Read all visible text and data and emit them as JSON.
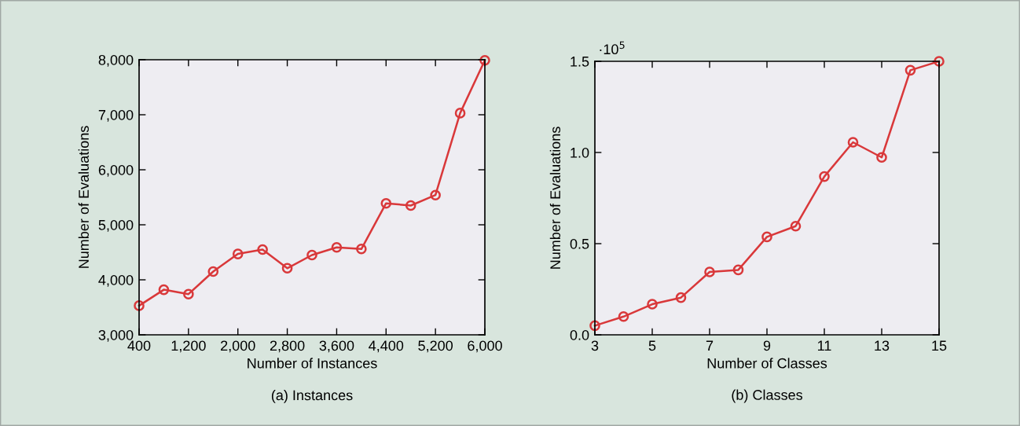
{
  "chart_data": [
    {
      "type": "line",
      "subtitle": "(a) Instances",
      "xlabel": "Number of Instances",
      "ylabel": "Number of Evaluations",
      "x": [
        400,
        800,
        1200,
        1600,
        2000,
        2400,
        2800,
        3200,
        3600,
        4000,
        4400,
        4800,
        5200,
        5600,
        6000
      ],
      "series": [
        {
          "color": "#d9383a",
          "values": [
            3530,
            3820,
            3740,
            4150,
            4470,
            4550,
            4210,
            4450,
            4590,
            4560,
            5390,
            5350,
            5540,
            7030,
            7990
          ]
        }
      ],
      "xlim": [
        400,
        6000
      ],
      "ylim": [
        3000,
        8000
      ],
      "xticks": [
        {
          "value": 400,
          "label": "400"
        },
        {
          "value": 1200,
          "label": "1,200"
        },
        {
          "value": 2000,
          "label": "2,000"
        },
        {
          "value": 2800,
          "label": "2,800"
        },
        {
          "value": 3600,
          "label": "3,600"
        },
        {
          "value": 4400,
          "label": "4,400"
        },
        {
          "value": 5200,
          "label": "5,200"
        },
        {
          "value": 6000,
          "label": "6,000"
        }
      ],
      "yticks": [
        {
          "value": 3000,
          "label": "3,000"
        },
        {
          "value": 4000,
          "label": "4,000"
        },
        {
          "value": 5000,
          "label": "5,000"
        },
        {
          "value": 6000,
          "label": "6,000"
        },
        {
          "value": 7000,
          "label": "7,000"
        },
        {
          "value": 8000,
          "label": "8,000"
        }
      ],
      "marker": "circle",
      "line_style": "solid",
      "grid": false,
      "legend": false
    },
    {
      "type": "line",
      "subtitle": "(b) Classes",
      "xlabel": "Number of Classes",
      "ylabel": "Number of Evaluations",
      "annotations": [
        "·10$^{5}$"
      ],
      "x": [
        3,
        4,
        5,
        6,
        7,
        8,
        9,
        10,
        11,
        12,
        13,
        14,
        15
      ],
      "series": [
        {
          "color": "#d9383a",
          "values": [
            0.05,
            0.1,
            0.168,
            0.204,
            0.345,
            0.356,
            0.537,
            0.596,
            0.868,
            1.056,
            0.973,
            1.451,
            1.5
          ]
        }
      ],
      "xlim": [
        3,
        15
      ],
      "ylim": [
        0,
        1.5
      ],
      "xticks": [
        3,
        5,
        7,
        9,
        11,
        13,
        15
      ],
      "yticks": [
        {
          "value": 0,
          "label": "0.0"
        },
        {
          "value": 0.5,
          "label": "0.5"
        },
        {
          "value": 1.0,
          "label": "1.0"
        },
        {
          "value": 1.5,
          "label": "1.5"
        }
      ],
      "marker": "circle",
      "line_style": "solid",
      "grid": false,
      "legend": false
    }
  ]
}
